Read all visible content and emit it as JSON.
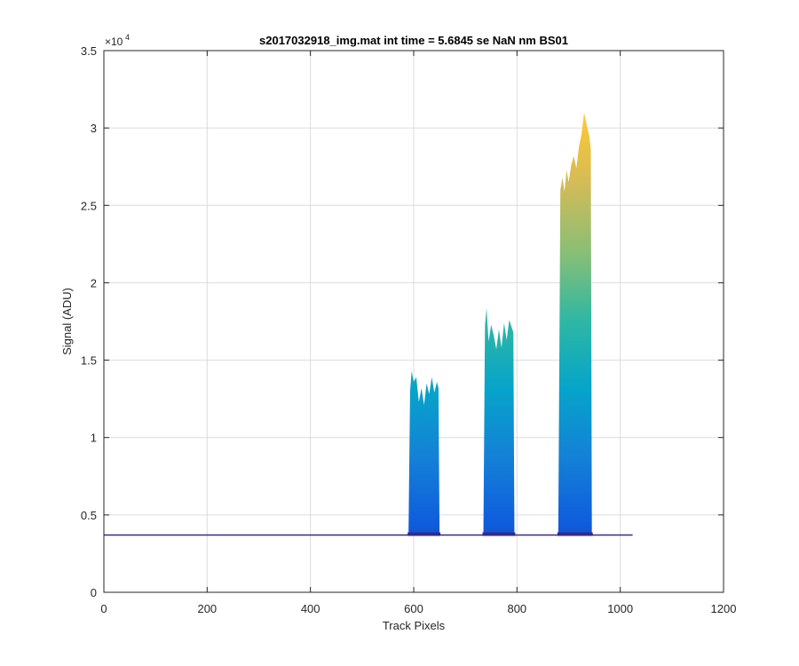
{
  "chart_data": {
    "type": "area",
    "title": "s2017032918_img.mat int time = 5.6845 se  NaN nm BS01",
    "xlabel": "Track Pixels",
    "ylabel": "Signal (ADU)",
    "y_exponent_label": "×10",
    "y_exponent_power": "4",
    "xlim": [
      0,
      1200
    ],
    "ylim": [
      0,
      35000
    ],
    "x_ticks": [
      0,
      200,
      400,
      600,
      800,
      1000,
      1200
    ],
    "x_tick_labels": [
      "0",
      "200",
      "400",
      "600",
      "800",
      "1000",
      "1200"
    ],
    "y_ticks": [
      0,
      5000,
      10000,
      15000,
      20000,
      25000,
      30000,
      35000
    ],
    "y_tick_labels": [
      "0",
      "0.5",
      "1",
      "1.5",
      "2",
      "2.5",
      "3",
      "3.5"
    ],
    "grid": true,
    "colormap": "parula",
    "colors": [
      "#352a87",
      "#0f5cdd",
      "#1481d6",
      "#06a4ca",
      "#2eb7a4",
      "#87bf77",
      "#d1bb59",
      "#fec832",
      "#f9fb0e"
    ],
    "baseline": 3700,
    "x_range": [
      0,
      1024
    ],
    "peaks": [
      {
        "x_start": 590,
        "x_end": 650,
        "max_signal": 14300,
        "profile_x": [
          590,
          593,
          596,
          600,
          605,
          610,
          615,
          620,
          625,
          630,
          635,
          640,
          645,
          648,
          650
        ],
        "profile_y": [
          3900,
          13000,
          14300,
          13600,
          13900,
          12300,
          13200,
          12100,
          13500,
          12800,
          13900,
          12900,
          13600,
          13200,
          3900
        ]
      },
      {
        "x_start": 735,
        "x_end": 795,
        "max_signal": 18400,
        "profile_x": [
          735,
          738,
          741,
          745,
          750,
          755,
          760,
          765,
          770,
          775,
          780,
          785,
          790,
          793,
          795
        ],
        "profile_y": [
          3900,
          17200,
          18400,
          16200,
          17300,
          16600,
          15700,
          17000,
          15800,
          17400,
          16300,
          17600,
          17100,
          16800,
          3900
        ]
      },
      {
        "x_start": 880,
        "x_end": 945,
        "max_signal": 31000,
        "profile_x": [
          880,
          884,
          888,
          892,
          896,
          900,
          905,
          910,
          915,
          920,
          925,
          930,
          935,
          940,
          943,
          945
        ],
        "profile_y": [
          3900,
          26000,
          26800,
          25900,
          27300,
          26500,
          27600,
          28200,
          27400,
          28800,
          29600,
          31000,
          30200,
          29500,
          28600,
          3900
        ]
      }
    ]
  }
}
